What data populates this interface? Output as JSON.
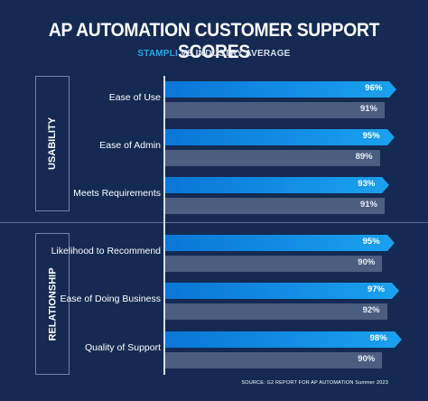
{
  "chart_data": {
    "type": "bar",
    "title": "AP AUTOMATION CUSTOMER SUPPORT SCORES",
    "subtitle_series_a": "STAMPLI",
    "subtitle_separator": " VS ",
    "subtitle_series_b": "INDUSTRY AVERAGE",
    "orientation": "horizontal",
    "groups": [
      {
        "label": "USABILITY",
        "categories": [
          "Ease of Use",
          "Ease of Admin",
          "Meets Requirements"
        ]
      },
      {
        "label": "RELATIONSHIP",
        "categories": [
          "Likelihood to Recommend",
          "Ease of Doing Business",
          "Quality of Support"
        ]
      }
    ],
    "categories": [
      "Ease of Use",
      "Ease of Admin",
      "Meets Requirements",
      "Likelihood to Recommend",
      "Ease of Doing Business",
      "Quality of Support"
    ],
    "series": [
      {
        "name": "STAMPLI",
        "values": [
          96,
          95,
          93,
          95,
          97,
          98
        ],
        "labels": [
          "96%",
          "95%",
          "93%",
          "95%",
          "97%",
          "98%"
        ],
        "color": "#1aa0ee"
      },
      {
        "name": "INDUSTRY AVERAGE",
        "values": [
          91,
          89,
          91,
          90,
          92,
          90
        ],
        "labels": [
          "91%",
          "89%",
          "91%",
          "90%",
          "92%",
          "90%"
        ],
        "color": "#4b5e80"
      }
    ],
    "xlim": [
      0,
      100
    ],
    "source": "SOURCE: G2 REPORT FOR AP AUTOMATION Summer 2023"
  }
}
